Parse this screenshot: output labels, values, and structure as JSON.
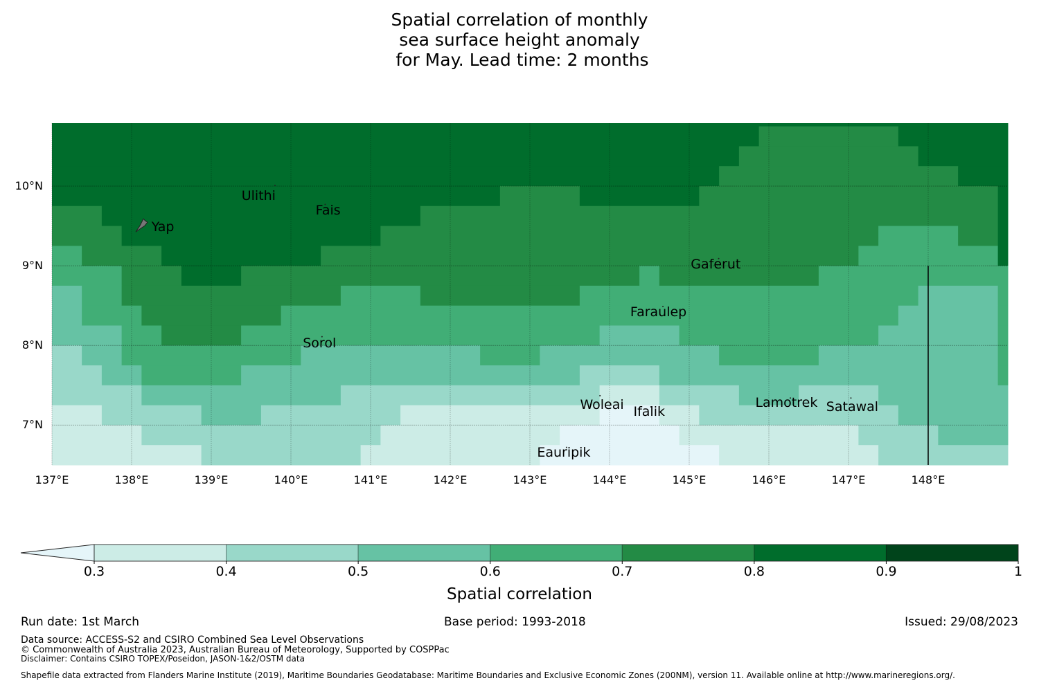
{
  "title_lines": [
    "Spatial correlation of monthly",
    "sea surface height anomaly",
    " for May. Lead time: 2 months"
  ],
  "chart_data": {
    "type": "heatmap",
    "title": "Spatial correlation of monthly sea surface height anomaly for May. Lead time: 2 months",
    "x_range_lon": [
      137.0,
      149.0
    ],
    "y_range_lat": [
      6.5,
      10.79
    ],
    "x_ticks": [
      137,
      138,
      139,
      140,
      141,
      142,
      143,
      144,
      145,
      146,
      147,
      148
    ],
    "x_tick_labels": [
      "137°E",
      "138°E",
      "139°E",
      "140°E",
      "141°E",
      "142°E",
      "143°E",
      "144°E",
      "145°E",
      "146°E",
      "147°E",
      "148°E"
    ],
    "y_ticks": [
      10,
      9,
      8,
      7
    ],
    "y_tick_labels": [
      "10°N",
      "9°N",
      "8°N",
      "7°N"
    ],
    "grid": true,
    "levels": [
      {
        "range": "<0.3",
        "color": "#e5f5f9"
      },
      {
        "range": "0.3-0.4",
        "color": "#ccece6"
      },
      {
        "range": "0.4-0.5",
        "color": "#99d8c9"
      },
      {
        "range": "0.5-0.6",
        "color": "#66c2a4"
      },
      {
        "range": "0.6-0.7",
        "color": "#41ae76"
      },
      {
        "range": "0.7-0.8",
        "color": "#238b45"
      },
      {
        "range": "0.8-0.9",
        "color": "#006d2c"
      },
      {
        "range": "0.9-1",
        "color": "#00441b"
      }
    ],
    "cell_rows_note": "each row: lat range and runs of [lon_end, level_index]; runs start at 137.0",
    "rows": [
      {
        "lat": [
          10.75,
          10.79
        ],
        "runs": [
          [
            149.0,
            6
          ]
        ]
      },
      {
        "lat": [
          10.5,
          10.75
        ],
        "runs": [
          [
            145.875,
            6
          ],
          [
            147.625,
            5
          ],
          [
            149.0,
            6
          ]
        ]
      },
      {
        "lat": [
          10.25,
          10.5
        ],
        "runs": [
          [
            145.625,
            6
          ],
          [
            147.875,
            5
          ],
          [
            149.0,
            6
          ]
        ]
      },
      {
        "lat": [
          10.0,
          10.25
        ],
        "runs": [
          [
            145.375,
            6
          ],
          [
            148.375,
            5
          ],
          [
            149.0,
            6
          ]
        ]
      },
      {
        "lat": [
          9.75,
          10.0
        ],
        "runs": [
          [
            142.625,
            6
          ],
          [
            143.625,
            5
          ],
          [
            145.125,
            6
          ],
          [
            148.875,
            5
          ],
          [
            149.0,
            6
          ]
        ]
      },
      {
        "lat": [
          9.5,
          9.75
        ],
        "runs": [
          [
            137.625,
            5
          ],
          [
            141.625,
            6
          ],
          [
            148.875,
            5
          ],
          [
            149.0,
            6
          ]
        ]
      },
      {
        "lat": [
          9.25,
          9.5
        ],
        "runs": [
          [
            137.875,
            5
          ],
          [
            141.125,
            6
          ],
          [
            147.375,
            5
          ],
          [
            148.375,
            4
          ],
          [
            148.875,
            5
          ],
          [
            149.0,
            6
          ]
        ]
      },
      {
        "lat": [
          9.0,
          9.25
        ],
        "runs": [
          [
            137.375,
            4
          ],
          [
            138.375,
            5
          ],
          [
            140.375,
            6
          ],
          [
            147.125,
            5
          ],
          [
            148.875,
            4
          ],
          [
            149.0,
            6
          ]
        ]
      },
      {
        "lat": [
          8.75,
          9.0
        ],
        "runs": [
          [
            137.875,
            4
          ],
          [
            138.625,
            5
          ],
          [
            139.375,
            6
          ],
          [
            144.375,
            5
          ],
          [
            144.625,
            4
          ],
          [
            146.625,
            5
          ],
          [
            149.0,
            4
          ]
        ]
      },
      {
        "lat": [
          8.5,
          8.75
        ],
        "runs": [
          [
            137.375,
            3
          ],
          [
            137.875,
            4
          ],
          [
            140.625,
            5
          ],
          [
            141.625,
            4
          ],
          [
            143.625,
            5
          ],
          [
            147.875,
            4
          ],
          [
            148.875,
            3
          ],
          [
            149.0,
            4
          ]
        ]
      },
      {
        "lat": [
          8.25,
          8.5
        ],
        "runs": [
          [
            137.375,
            3
          ],
          [
            138.125,
            4
          ],
          [
            139.875,
            5
          ],
          [
            147.625,
            4
          ],
          [
            148.875,
            3
          ],
          [
            149.0,
            4
          ]
        ]
      },
      {
        "lat": [
          8.0,
          8.25
        ],
        "runs": [
          [
            137.875,
            3
          ],
          [
            138.375,
            4
          ],
          [
            139.375,
            5
          ],
          [
            143.875,
            4
          ],
          [
            144.875,
            3
          ],
          [
            147.375,
            4
          ],
          [
            148.875,
            3
          ],
          [
            149.0,
            4
          ]
        ]
      },
      {
        "lat": [
          7.75,
          8.0
        ],
        "runs": [
          [
            137.375,
            2
          ],
          [
            137.875,
            3
          ],
          [
            140.125,
            4
          ],
          [
            142.375,
            3
          ],
          [
            143.125,
            4
          ],
          [
            145.375,
            3
          ],
          [
            146.625,
            4
          ],
          [
            148.875,
            3
          ],
          [
            149.0,
            4
          ]
        ]
      },
      {
        "lat": [
          7.5,
          7.75
        ],
        "runs": [
          [
            137.625,
            2
          ],
          [
            138.125,
            3
          ],
          [
            139.375,
            4
          ],
          [
            143.625,
            3
          ],
          [
            144.625,
            2
          ],
          [
            148.875,
            3
          ],
          [
            149.0,
            4
          ]
        ]
      },
      {
        "lat": [
          7.25,
          7.5
        ],
        "runs": [
          [
            138.125,
            2
          ],
          [
            140.625,
            3
          ],
          [
            143.875,
            2
          ],
          [
            144.625,
            1
          ],
          [
            145.625,
            2
          ],
          [
            146.375,
            3
          ],
          [
            147.375,
            2
          ],
          [
            149.0,
            3
          ]
        ]
      },
      {
        "lat": [
          7.0,
          7.25
        ],
        "runs": [
          [
            137.625,
            1
          ],
          [
            138.875,
            2
          ],
          [
            139.625,
            3
          ],
          [
            141.375,
            2
          ],
          [
            143.875,
            1
          ],
          [
            144.625,
            0
          ],
          [
            145.125,
            1
          ],
          [
            147.625,
            2
          ],
          [
            149.0,
            3
          ]
        ]
      },
      {
        "lat": [
          6.75,
          7.0
        ],
        "runs": [
          [
            138.125,
            1
          ],
          [
            141.125,
            2
          ],
          [
            143.375,
            1
          ],
          [
            144.875,
            0
          ],
          [
            147.125,
            1
          ],
          [
            148.125,
            2
          ],
          [
            149.0,
            3
          ]
        ]
      },
      {
        "lat": [
          6.5,
          6.75
        ],
        "runs": [
          [
            138.875,
            1
          ],
          [
            140.875,
            2
          ],
          [
            143.125,
            1
          ],
          [
            145.375,
            0
          ],
          [
            147.375,
            1
          ],
          [
            149.0,
            2
          ]
        ]
      }
    ],
    "boundary_lines": [
      {
        "name": "eez-boundary",
        "points": [
          [
            148.0,
            9.0
          ],
          [
            148.0,
            6.5
          ]
        ]
      }
    ],
    "islands": [
      {
        "name": "Yap",
        "marker": [
          138.13,
          9.52
        ],
        "label": [
          138.25,
          9.48
        ],
        "shape": "island"
      },
      {
        "name": "Ulithi",
        "marker": [
          139.8,
          10.01
        ],
        "label": [
          139.38,
          9.87
        ],
        "shape": "dot"
      },
      {
        "name": "Fais",
        "marker": [
          140.43,
          9.77
        ],
        "label": [
          140.31,
          9.69
        ],
        "shape": "dot"
      },
      {
        "name": "Gaferut",
        "marker": [
          145.37,
          9.09
        ],
        "label": [
          145.02,
          9.01
        ],
        "shape": "dot"
      },
      {
        "name": "Faraulep",
        "marker": [
          144.67,
          8.49
        ],
        "label": [
          144.26,
          8.41
        ],
        "shape": "dot"
      },
      {
        "name": "Sorol",
        "marker": [
          140.39,
          8.11
        ],
        "label": [
          140.15,
          8.02
        ],
        "shape": "dot"
      },
      {
        "name": "Woleai",
        "marker": [
          143.88,
          7.37
        ],
        "label": [
          143.63,
          7.25
        ],
        "shape": "dot"
      },
      {
        "name": "Ifalik",
        "marker": [
          144.52,
          7.23
        ],
        "label": [
          144.3,
          7.16
        ],
        "shape": "dot"
      },
      {
        "name": "Lamotrek",
        "marker": [
          146.27,
          7.34
        ],
        "label": [
          145.83,
          7.27
        ],
        "shape": "dot"
      },
      {
        "name": "Satawal",
        "marker": [
          147.03,
          7.34
        ],
        "label": [
          146.72,
          7.22
        ],
        "shape": "dot"
      },
      {
        "name": "Eauripik",
        "marker": [
          143.46,
          6.72
        ],
        "label": [
          143.09,
          6.65
        ],
        "shape": "dot"
      }
    ],
    "colorbar": {
      "label": "Spatial correlation",
      "ticks": [
        0.3,
        0.4,
        0.5,
        0.6,
        0.7,
        0.8,
        0.9,
        1
      ],
      "tick_labels": [
        "0.3",
        "0.4",
        "0.5",
        "0.6",
        "0.7",
        "0.8",
        "0.9",
        "1"
      ],
      "extend": "min"
    }
  },
  "footer": {
    "run_date": "Run date: 1st March",
    "base_period": "Base period: 1993-2018",
    "issued": "Issued: 29/08/2023",
    "data_source": "Data source: ACCESS-S2 and CSIRO Combined Sea Level Observations",
    "copyright": "© Commonwealth of Australia 2023, Australian Bureau of Meteorology, Supported by COSPPac",
    "disclaimer": "Disclaimer: Contains CSIRO TOPEX/Poseidon, JASON-1&2/OSTM data",
    "shapefile": "Shapefile data extracted from Flanders Marine Institute (2019), Maritime Boundaries Geodatabase: Maritime Boundaries and Exclusive Economic Zones (200NM), version 11. Available online at http://www.marineregions.org/."
  }
}
